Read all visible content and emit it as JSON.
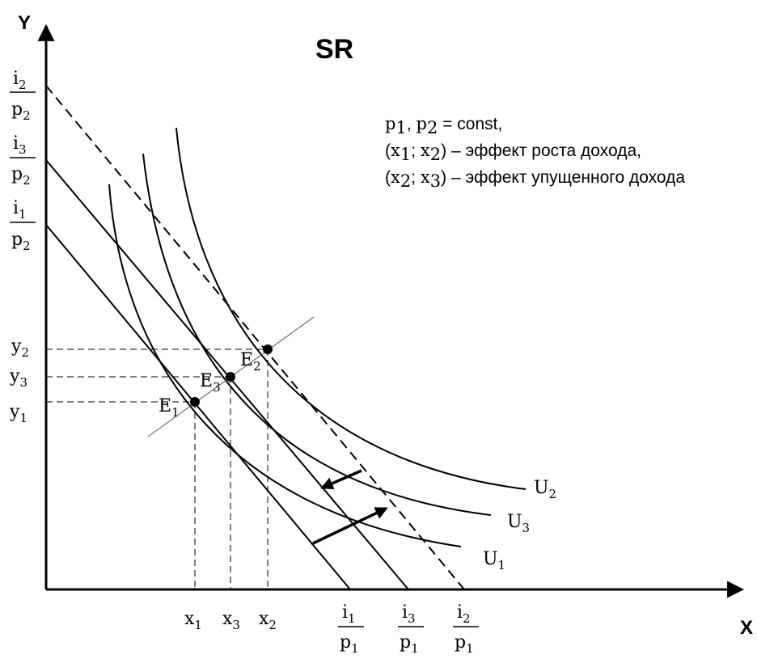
{
  "title": "SR",
  "axes": {
    "x": "X",
    "y": "Y"
  },
  "curves": {
    "u1": {
      "base": "U",
      "sub": "1"
    },
    "u2": {
      "base": "U",
      "sub": "2"
    },
    "u3": {
      "base": "U",
      "sub": "3"
    }
  },
  "points": {
    "e1": {
      "base": "E",
      "sub": "1"
    },
    "e2": {
      "base": "E",
      "sub": "2"
    },
    "e3": {
      "base": "E",
      "sub": "3"
    }
  },
  "x_ticks": [
    {
      "base": "x",
      "sub": "1"
    },
    {
      "base": "x",
      "sub": "3"
    },
    {
      "base": "x",
      "sub": "2"
    }
  ],
  "y_ticks": [
    {
      "base": "y",
      "sub": "2"
    },
    {
      "base": "y",
      "sub": "3"
    },
    {
      "base": "y",
      "sub": "1"
    }
  ],
  "x_intercepts": [
    {
      "num": "i",
      "num_sub": "1",
      "den": "p",
      "den_sub": "1"
    },
    {
      "num": "i",
      "num_sub": "3",
      "den": "p",
      "den_sub": "1"
    },
    {
      "num": "i",
      "num_sub": "2",
      "den": "p",
      "den_sub": "1"
    }
  ],
  "y_intercepts": [
    {
      "num": "i",
      "num_sub": "2",
      "den": "p",
      "den_sub": "2"
    },
    {
      "num": "i",
      "num_sub": "3",
      "den": "p",
      "den_sub": "2"
    },
    {
      "num": "i",
      "num_sub": "1",
      "den": "p",
      "den_sub": "2"
    }
  ],
  "notes": {
    "line1": {
      "p": "p",
      "s1": "1",
      "comma": ", ",
      "p2": "p",
      "s2": "2",
      "rest": " = const,"
    },
    "line2": {
      "open": "(",
      "x": "x",
      "s1": "1",
      "sep": "; ",
      "x2": "x",
      "s2": "2",
      "close": ")",
      "rest": " – эффект роста дохода,"
    },
    "line3": {
      "open": "(",
      "x": "x",
      "s1": "2",
      "sep": "; ",
      "x2": "x",
      "s2": "3",
      "close": ")",
      "rest": " – эффект упущенного дохода"
    }
  }
}
